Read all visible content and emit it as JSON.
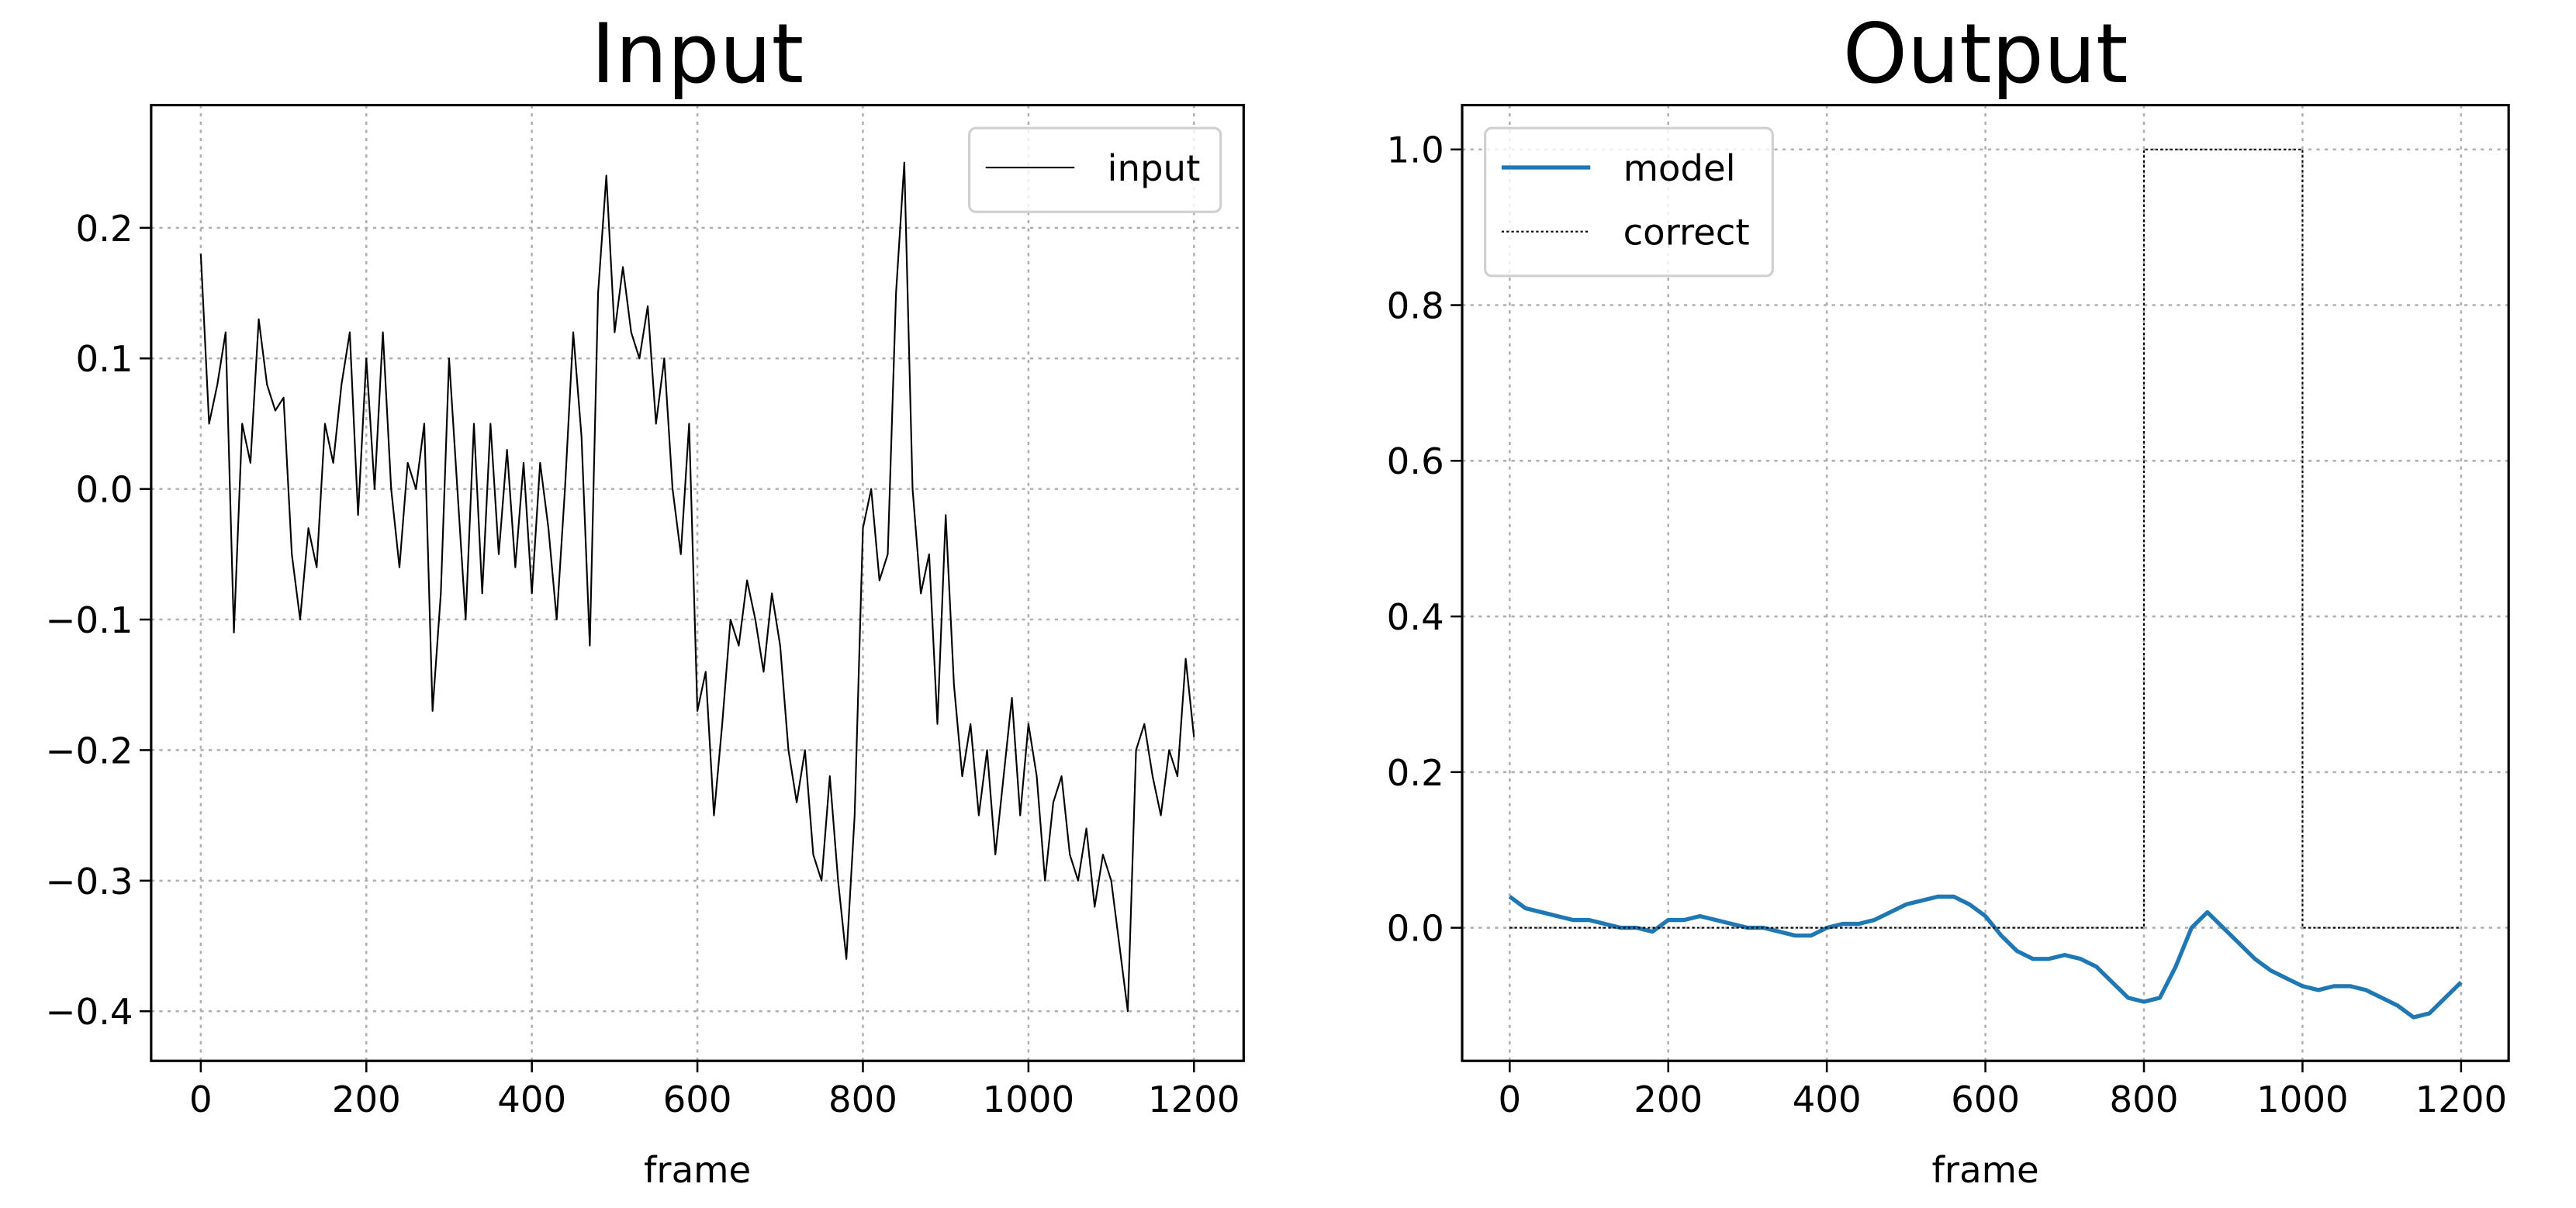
{
  "chart_data": [
    {
      "type": "line",
      "title": "Input",
      "x_label": "frame",
      "xlim": [
        -60,
        1260
      ],
      "ylim": [
        -0.438,
        0.294
      ],
      "xticks": [
        0,
        200,
        400,
        600,
        800,
        1000,
        1200
      ],
      "yticks": [
        {
          "value": -0.4,
          "label": "−0.4"
        },
        {
          "value": -0.3,
          "label": "−0.3"
        },
        {
          "value": -0.2,
          "label": "−0.2"
        },
        {
          "value": -0.1,
          "label": "−0.1"
        },
        {
          "value": 0,
          "label": "0.0"
        },
        0.1,
        0.2
      ],
      "grid": true,
      "legend": "upper right",
      "series": [
        {
          "name": "input",
          "color": "#000000",
          "line_width": 1,
          "dash": "solid",
          "x": [
            0,
            10,
            20,
            30,
            40,
            50,
            60,
            70,
            80,
            90,
            100,
            110,
            120,
            130,
            140,
            150,
            160,
            170,
            180,
            190,
            200,
            210,
            220,
            230,
            240,
            250,
            260,
            270,
            280,
            290,
            300,
            310,
            320,
            330,
            340,
            350,
            360,
            370,
            380,
            390,
            400,
            410,
            420,
            430,
            440,
            450,
            460,
            470,
            480,
            490,
            500,
            510,
            520,
            530,
            540,
            550,
            560,
            570,
            580,
            590,
            600,
            610,
            620,
            630,
            640,
            650,
            660,
            670,
            680,
            690,
            700,
            710,
            720,
            730,
            740,
            750,
            760,
            770,
            780,
            790,
            800,
            810,
            820,
            830,
            840,
            850,
            860,
            870,
            880,
            890,
            900,
            910,
            920,
            930,
            940,
            950,
            960,
            970,
            980,
            990,
            1000,
            1010,
            1020,
            1030,
            1040,
            1050,
            1060,
            1070,
            1080,
            1090,
            1100,
            1110,
            1120,
            1130,
            1140,
            1150,
            1160,
            1170,
            1180,
            1190,
            1200
          ],
          "values": [
            0.18,
            0.05,
            0.08,
            0.12,
            -0.11,
            0.05,
            0.02,
            0.13,
            0.08,
            0.06,
            0.07,
            -0.05,
            -0.1,
            -0.03,
            -0.06,
            0.05,
            0.02,
            0.08,
            0.12,
            -0.02,
            0.1,
            0.0,
            0.12,
            0.0,
            -0.06,
            0.02,
            0.0,
            0.05,
            -0.17,
            -0.08,
            0.1,
            0.0,
            -0.1,
            0.05,
            -0.08,
            0.05,
            -0.05,
            0.03,
            -0.06,
            0.02,
            -0.08,
            0.02,
            -0.03,
            -0.1,
            0.0,
            0.12,
            0.04,
            -0.12,
            0.15,
            0.24,
            0.12,
            0.17,
            0.12,
            0.1,
            0.14,
            0.05,
            0.1,
            0.0,
            -0.05,
            0.05,
            -0.17,
            -0.14,
            -0.25,
            -0.18,
            -0.1,
            -0.12,
            -0.07,
            -0.1,
            -0.14,
            -0.08,
            -0.12,
            -0.2,
            -0.24,
            -0.2,
            -0.28,
            -0.3,
            -0.22,
            -0.3,
            -0.36,
            -0.25,
            -0.03,
            0.0,
            -0.07,
            -0.05,
            0.15,
            0.25,
            0.0,
            -0.08,
            -0.05,
            -0.18,
            -0.02,
            -0.15,
            -0.22,
            -0.18,
            -0.25,
            -0.2,
            -0.28,
            -0.22,
            -0.16,
            -0.25,
            -0.18,
            -0.22,
            -0.3,
            -0.24,
            -0.22,
            -0.28,
            -0.3,
            -0.26,
            -0.32,
            -0.28,
            -0.3,
            -0.35,
            -0.4,
            -0.2,
            -0.18,
            -0.22,
            -0.25,
            -0.2,
            -0.22,
            -0.13,
            -0.19
          ]
        }
      ]
    },
    {
      "type": "line",
      "title": "Output",
      "x_label": "frame",
      "xlim": [
        -60,
        1260
      ],
      "ylim": [
        -0.171,
        1.057
      ],
      "xticks": [
        0,
        200,
        400,
        600,
        800,
        1000,
        1200
      ],
      "yticks": [
        {
          "value": 0,
          "label": "0.0"
        },
        0.2,
        0.4,
        0.6,
        0.8,
        {
          "value": 1,
          "label": "1.0"
        }
      ],
      "grid": true,
      "legend": "upper left",
      "series": [
        {
          "name": "model",
          "color": "#1f77b4",
          "line_width": 2.5,
          "dash": "solid",
          "x": [
            0,
            20,
            40,
            60,
            80,
            100,
            120,
            140,
            160,
            180,
            200,
            220,
            240,
            260,
            280,
            300,
            320,
            340,
            360,
            380,
            400,
            420,
            440,
            460,
            480,
            500,
            520,
            540,
            560,
            580,
            600,
            620,
            640,
            660,
            680,
            700,
            720,
            740,
            760,
            780,
            800,
            820,
            840,
            860,
            880,
            900,
            920,
            940,
            960,
            980,
            1000,
            1020,
            1040,
            1060,
            1080,
            1100,
            1120,
            1140,
            1160,
            1180,
            1200
          ],
          "values": [
            0.04,
            0.025,
            0.02,
            0.015,
            0.01,
            0.01,
            0.005,
            0.0,
            0.0,
            -0.005,
            0.01,
            0.01,
            0.015,
            0.01,
            0.005,
            0.0,
            0.0,
            -0.005,
            -0.01,
            -0.01,
            0.0,
            0.005,
            0.005,
            0.01,
            0.02,
            0.03,
            0.035,
            0.04,
            0.04,
            0.03,
            0.015,
            -0.01,
            -0.03,
            -0.04,
            -0.04,
            -0.035,
            -0.04,
            -0.05,
            -0.07,
            -0.09,
            -0.095,
            -0.09,
            -0.05,
            0.0,
            0.02,
            0.0,
            -0.02,
            -0.04,
            -0.055,
            -0.065,
            -0.075,
            -0.08,
            -0.075,
            -0.075,
            -0.08,
            -0.09,
            -0.1,
            -0.115,
            -0.11,
            -0.09,
            -0.07
          ]
        },
        {
          "name": "correct",
          "color": "#000000",
          "line_width": 1,
          "dash": "dotted",
          "x": [
            0,
            800,
            800,
            1000,
            1000,
            1200
          ],
          "values": [
            0,
            0,
            1,
            1,
            0,
            0
          ]
        }
      ]
    }
  ]
}
